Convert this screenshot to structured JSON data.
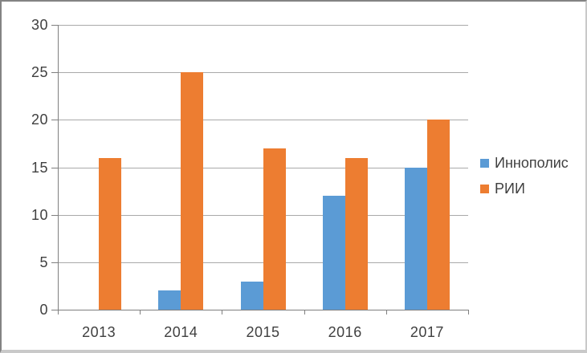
{
  "chart_data": {
    "type": "bar",
    "categories": [
      "2013",
      "2014",
      "2015",
      "2016",
      "2017"
    ],
    "series": [
      {
        "name": "Иннополис",
        "slug": "innopolis",
        "color": "#5B9BD5",
        "values": [
          0,
          2,
          3,
          12,
          15
        ]
      },
      {
        "name": "РИИ",
        "slug": "rii",
        "color": "#ED7D31",
        "values": [
          16,
          25,
          17,
          16,
          20
        ]
      }
    ],
    "title": "",
    "xlabel": "",
    "ylabel": "",
    "ylim": [
      0,
      30
    ],
    "ytick_step": 5,
    "ytick_labels": [
      "0",
      "5",
      "10",
      "15",
      "20",
      "25",
      "30"
    ],
    "grid": true,
    "legend_position": "right"
  },
  "colors": {
    "background": "#ffffff",
    "gridline": "#a9a9a9",
    "axis": "#7f7f7f",
    "label": "#404040"
  }
}
